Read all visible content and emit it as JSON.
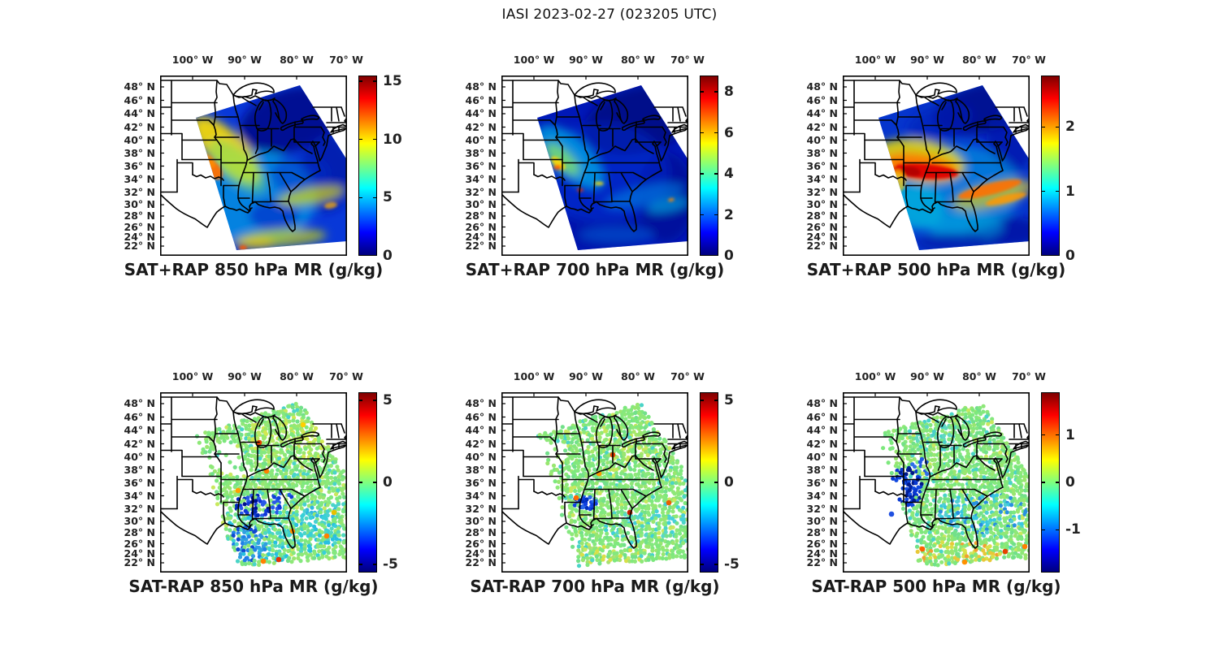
{
  "title": "IASI 2023-02-27 (023205 UTC)",
  "axes": {
    "lon_labels": [
      "100° W",
      "90° W",
      "80° W",
      "70° W"
    ],
    "lat_labels": [
      "48° N",
      "46° N",
      "44° N",
      "42° N",
      "40° N",
      "38° N",
      "36° N",
      "34° N",
      "32° N",
      "30° N",
      "28° N",
      "26° N",
      "24° N",
      "22° N"
    ]
  },
  "panels": [
    {
      "id": "sat-plus-rap-850",
      "title": "SAT+RAP 850 hPa MR (g/kg)",
      "colorbar": {
        "range": [
          0,
          15.5
        ],
        "tick_values": [
          0,
          5,
          10,
          15
        ],
        "tick_labels": [
          "0",
          "5",
          "10",
          "15"
        ]
      }
    },
    {
      "id": "sat-plus-rap-700",
      "title": "SAT+RAP 700 hPa MR (g/kg)",
      "colorbar": {
        "range": [
          0,
          8.8
        ],
        "tick_values": [
          0,
          2,
          4,
          6,
          8
        ],
        "tick_labels": [
          "0",
          "2",
          "4",
          "6",
          "8"
        ]
      }
    },
    {
      "id": "sat-plus-rap-500",
      "title": "SAT+RAP 500 hPa MR (g/kg)",
      "colorbar": {
        "range": [
          0,
          2.8
        ],
        "tick_values": [
          0,
          1,
          2
        ],
        "tick_labels": [
          "0",
          "1",
          "2"
        ]
      }
    },
    {
      "id": "sat-minus-rap-850",
      "title": "SAT-RAP 850 hPa MR (g/kg)",
      "colorbar": {
        "range": [
          -5.5,
          5.5
        ],
        "tick_values": [
          -5,
          0,
          5
        ],
        "tick_labels": [
          "-5",
          "0",
          "5"
        ]
      }
    },
    {
      "id": "sat-minus-rap-700",
      "title": "SAT-RAP 700 hPa MR (g/kg)",
      "colorbar": {
        "range": [
          -5.5,
          5.5
        ],
        "tick_values": [
          -5,
          0,
          5
        ],
        "tick_labels": [
          "-5",
          "0",
          "5"
        ]
      }
    },
    {
      "id": "sat-minus-rap-500",
      "title": "SAT-RAP 500 hPa MR (g/kg)",
      "colorbar": {
        "range": [
          -1.9,
          1.9
        ],
        "tick_values": [
          -1,
          0,
          1
        ],
        "tick_labels": [
          "-1",
          "0",
          "1"
        ]
      }
    }
  ],
  "colors": {
    "colormap": "jet",
    "jet_stops_top_to_bottom": [
      "#800000",
      "#ff0000",
      "#ffff00",
      "#80ff80",
      "#00ffff",
      "#0000ff",
      "#000080"
    ],
    "map_line": "#000000",
    "background": "#ffffff"
  },
  "chart_data": [
    {
      "type": "heatmap",
      "panel": "top-left",
      "title": "SAT+RAP 850 hPa MR (g/kg)",
      "units": "g/kg",
      "level_hPa": 850,
      "lon_ticks_deg_W": [
        100,
        90,
        80,
        70
      ],
      "lat_ticks_deg_N": [
        48,
        46,
        44,
        42,
        40,
        38,
        36,
        34,
        32,
        30,
        28,
        26,
        24,
        22
      ],
      "colormap": "jet",
      "colorbar_range": [
        0,
        15.5
      ],
      "colorbar_ticks": [
        0,
        5,
        10,
        15
      ],
      "pattern": "NE-SW tilted IASI swath over eastern US; 8-12 g/kg yellow-orange band from Iowa through Missouri to Arkansas; 1-3 g/kg dark blue over Great Lakes and Northeast; 4-8 g/kg cyan with yellow patches over the Gulf and Southeast; white (no data) northwest of swath edge"
    },
    {
      "type": "heatmap",
      "panel": "top-middle",
      "title": "SAT+RAP 700 hPa MR (g/kg)",
      "units": "g/kg",
      "level_hPa": 700,
      "lon_ticks_deg_W": [
        100,
        90,
        80,
        70
      ],
      "lat_ticks_deg_N": [
        48,
        46,
        44,
        42,
        40,
        38,
        36,
        34,
        32,
        30,
        28,
        26,
        24,
        22
      ],
      "colormap": "jet",
      "colorbar_range": [
        0,
        8.8
      ],
      "colorbar_ticks": [
        0,
        2,
        4,
        6,
        8
      ],
      "pattern": "Mostly 0-2 g/kg dark blue; cyan-green diagonal moist band 3-5 g/kg from Kansas to Kentucky with small orange/red maxima near Missouri-Arkansas; faint cyan streaks southeast offshore"
    },
    {
      "type": "heatmap",
      "panel": "top-right",
      "title": "SAT+RAP 500 hPa MR (g/kg)",
      "units": "g/kg",
      "level_hPa": 500,
      "lon_ticks_deg_W": [
        100,
        90,
        80,
        70
      ],
      "lat_ticks_deg_N": [
        48,
        46,
        44,
        42,
        40,
        38,
        36,
        34,
        32,
        30,
        28,
        26,
        24,
        22
      ],
      "colormap": "jet",
      "colorbar_range": [
        0,
        2.8
      ],
      "colorbar_ticks": [
        0,
        1,
        2
      ],
      "pattern": "Bright red-orange band >2 g/kg along 35-37N from Oklahoma to Tennessee surrounded by yellow; orange streaks near 31-33N offshore of the Carolinas; dark blue <0.5 g/kg over Northeast and far south"
    },
    {
      "type": "scatter",
      "panel": "bottom-left",
      "title": "SAT-RAP 850 hPa MR (g/kg)",
      "units": "g/kg",
      "level_hPa": 850,
      "lon_ticks_deg_W": [
        100,
        90,
        80,
        70
      ],
      "lat_ticks_deg_N": [
        48,
        46,
        44,
        42,
        40,
        38,
        36,
        34,
        32,
        30,
        28,
        26,
        24,
        22
      ],
      "colormap": "jet",
      "colorbar_range": [
        -5.5,
        5.5
      ],
      "colorbar_ticks": [
        -5,
        0,
        5
      ],
      "pattern": "Retrieval-minus-model differences mostly near 0 (green dots); +1 to +2 yellow-green near the Great Lakes; -2 to -4 blue clusters over Louisiana/Mississippi and the western Gulf; scattered orange/red outliers"
    },
    {
      "type": "scatter",
      "panel": "bottom-middle",
      "title": "SAT-RAP 700 hPa MR (g/kg)",
      "units": "g/kg",
      "level_hPa": 700,
      "lon_ticks_deg_W": [
        100,
        90,
        80,
        70
      ],
      "lat_ticks_deg_N": [
        48,
        46,
        44,
        42,
        40,
        38,
        36,
        34,
        32,
        30,
        28,
        26,
        24,
        22
      ],
      "colormap": "jet",
      "colorbar_range": [
        -5.5,
        5.5
      ],
      "colorbar_ticks": [
        -5,
        0,
        5
      ],
      "pattern": "Differences mostly near 0 (green dots); small negative blue cluster near Arkansas/Louisiana with one isolated orange dot; weak cyan patches southeast; yellow dots along southern swath edge"
    },
    {
      "type": "scatter",
      "panel": "bottom-right",
      "title": "SAT-RAP 500 hPa MR (g/kg)",
      "units": "g/kg",
      "level_hPa": 500,
      "lon_ticks_deg_W": [
        100,
        90,
        80,
        70
      ],
      "lat_ticks_deg_N": [
        48,
        46,
        44,
        42,
        40,
        38,
        36,
        34,
        32,
        30,
        28,
        26,
        24,
        22
      ],
      "colormap": "jet",
      "colorbar_range": [
        -1.9,
        1.9
      ],
      "colorbar_ticks": [
        -1,
        0,
        1
      ],
      "pattern": "Mostly near-0 green dots; strong negative dark-blue cluster over Oklahoma/Arkansas; broad weakly-negative cyan band southeast; orange/yellow positive dots along the southern edge"
    }
  ]
}
